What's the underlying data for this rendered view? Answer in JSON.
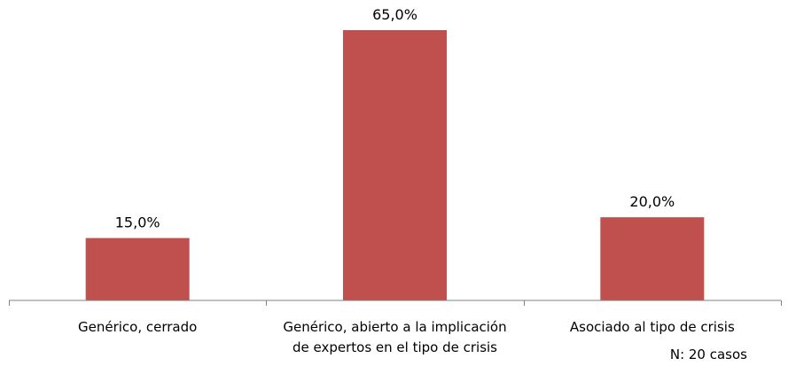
{
  "chart_data": {
    "type": "bar",
    "categories": [
      [
        "Genérico, cerrado"
      ],
      [
        "Genérico, abierto a la implicación",
        "de expertos en el tipo de crisis"
      ],
      [
        "Asociado al tipo de crisis"
      ]
    ],
    "values": [
      15.0,
      65.0,
      20.0
    ],
    "value_labels": [
      "15,0%",
      "65,0%",
      "20,0%"
    ],
    "ylim": [
      0,
      70
    ],
    "grid": false,
    "legend": "none",
    "bar_color": "#C0504D",
    "axis_color": "#808080",
    "note": "N: 20 casos"
  }
}
